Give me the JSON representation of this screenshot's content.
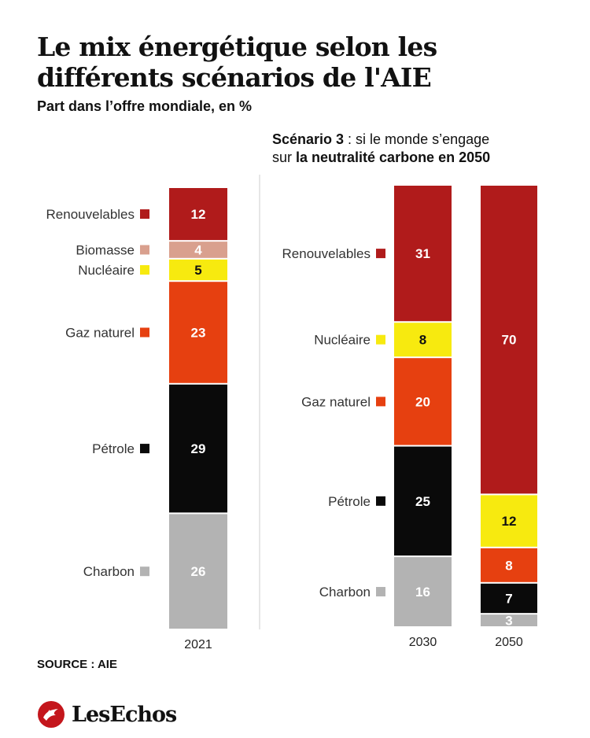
{
  "header": {
    "title": "Le mix énergétique selon les différents scénarios de l'AIE",
    "subtitle": "Part dans l’offre mondiale, en %"
  },
  "scenario": {
    "label_bold": "Scénario 3",
    "label_rest": " : si le monde s’engage",
    "line2_prefix": "sur ",
    "line2_bold": "la neutralité carbone en 2050"
  },
  "footer": {
    "source": "SOURCE : AIE",
    "brand": "LesEchos"
  },
  "colors": {
    "Renouvelables": "#b01b1b",
    "Biomasse": "#d9a08e",
    "Nucléaire": "#f7ea0f",
    "Gaz naturel": "#e64010",
    "Pétrole": "#0a0a0a",
    "Charbon": "#b3b3b3",
    "divider": "#cccccc",
    "brand": "#c4161c"
  },
  "chart_data": {
    "type": "bar",
    "stacked": true,
    "unit": "%",
    "categories": [
      "2021",
      "2030",
      "2050"
    ],
    "series": [
      {
        "name": "Charbon",
        "values": [
          26,
          16,
          3
        ]
      },
      {
        "name": "Pétrole",
        "values": [
          29,
          25,
          7
        ]
      },
      {
        "name": "Gaz naturel",
        "values": [
          23,
          20,
          8
        ]
      },
      {
        "name": "Nucléaire",
        "values": [
          5,
          8,
          12
        ]
      },
      {
        "name": "Biomasse",
        "values": [
          4,
          0,
          0
        ]
      },
      {
        "name": "Renouvelables",
        "values": [
          12,
          31,
          70
        ]
      }
    ],
    "labels_2021": [
      "Renouvelables",
      "Biomasse",
      "Nucléaire",
      "Gaz naturel",
      "Pétrole",
      "Charbon"
    ],
    "labels_2030": [
      "Renouvelables",
      "Nucléaire",
      "Gaz naturel",
      "Pétrole",
      "Charbon"
    ],
    "groups": [
      "2021",
      "Scénario 3"
    ]
  }
}
